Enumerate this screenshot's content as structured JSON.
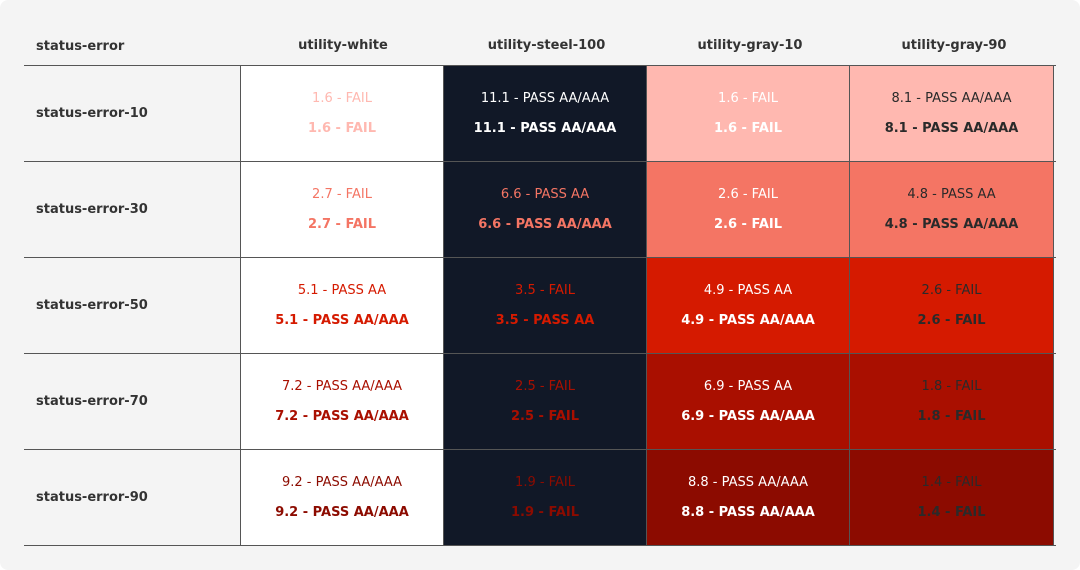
{
  "corner_label": "status-error",
  "columns": [
    {
      "label": "utility-white",
      "bg": "#ffffff"
    },
    {
      "label": "utility-steel-100",
      "bg": "#111827"
    },
    {
      "label": "utility-gray-10",
      "bg": null
    },
    {
      "label": "utility-gray-90",
      "bg": null
    }
  ],
  "rows": [
    {
      "label": "status-error-10",
      "row_bg": "#ffb8b0",
      "text_color": "#ffb8b0",
      "cells": [
        {
          "normal": "1.6 - FAIL",
          "large": "1.6 - FAIL",
          "bg": "#ffffff",
          "color": "#ffb8b0"
        },
        {
          "normal": "11.1 - PASS AA/AAA",
          "large": "11.1 - PASS AA/AAA",
          "bg": "#111827",
          "color": "#ffffff"
        },
        {
          "normal": "1.6 - FAIL",
          "large": "1.6 - FAIL",
          "bg": "#ffb8b0",
          "color": "#ffffff"
        },
        {
          "normal": "8.1 - PASS AA/AAA",
          "large": "8.1 - PASS AA/AAA",
          "bg": "#ffb8b0",
          "color": "#2a2a2a"
        }
      ]
    },
    {
      "label": "status-error-30",
      "cells": [
        {
          "normal": "2.7 - FAIL",
          "large": "2.7 - FAIL",
          "bg": "#ffffff",
          "color": "#f47564"
        },
        {
          "normal": "6.6 - PASS AA",
          "large": "6.6 - PASS AA/AAA",
          "bg": "#111827",
          "color": "#f47564"
        },
        {
          "normal": "2.6 - FAIL",
          "large": "2.6 - FAIL",
          "bg": "#f47564",
          "color": "#ffffff"
        },
        {
          "normal": "4.8 - PASS AA",
          "large": "4.8 - PASS AA/AAA",
          "bg": "#f47564",
          "color": "#2a2a2a"
        }
      ]
    },
    {
      "label": "status-error-50",
      "cells": [
        {
          "normal": "5.1 - PASS AA",
          "large": "5.1 - PASS AA/AAA",
          "bg": "#ffffff",
          "color": "#d51a00"
        },
        {
          "normal": "3.5 - FAIL",
          "large": "3.5 - PASS AA",
          "bg": "#111827",
          "color": "#d51a00"
        },
        {
          "normal": "4.9 - PASS AA",
          "large": "4.9 - PASS AA/AAA",
          "bg": "#d51a00",
          "color": "#ffffff"
        },
        {
          "normal": "2.6 - FAIL",
          "large": "2.6 - FAIL",
          "bg": "#d51a00",
          "color": "#2a2a2a"
        }
      ]
    },
    {
      "label": "status-error-70",
      "cells": [
        {
          "normal": "7.2 - PASS AA/AAA",
          "large": "7.2 - PASS AA/AAA",
          "bg": "#ffffff",
          "color": "#a90f00"
        },
        {
          "normal": "2.5 - FAIL",
          "large": "2.5 - FAIL",
          "bg": "#111827",
          "color": "#a90f00"
        },
        {
          "normal": "6.9 - PASS AA",
          "large": "6.9 - PASS AA/AAA",
          "bg": "#a90f00",
          "color": "#ffffff"
        },
        {
          "normal": "1.8 - FAIL",
          "large": "1.8 - FAIL",
          "bg": "#a90f00",
          "color": "#2a2a2a"
        }
      ]
    },
    {
      "label": "status-error-90",
      "cells": [
        {
          "normal": "9.2 - PASS AA/AAA",
          "large": "9.2 - PASS AA/AAA",
          "bg": "#ffffff",
          "color": "#8c0b00"
        },
        {
          "normal": "1.9 - FAIL",
          "large": "1.9 - FAIL",
          "bg": "#111827",
          "color": "#8c0b00"
        },
        {
          "normal": "8.8 - PASS AA/AAA",
          "large": "8.8 - PASS AA/AAA",
          "bg": "#8c0b00",
          "color": "#ffffff"
        },
        {
          "normal": "1.4 - FAIL",
          "large": "1.4 - FAIL",
          "bg": "#8c0b00",
          "color": "#2a2a2a"
        }
      ]
    }
  ]
}
